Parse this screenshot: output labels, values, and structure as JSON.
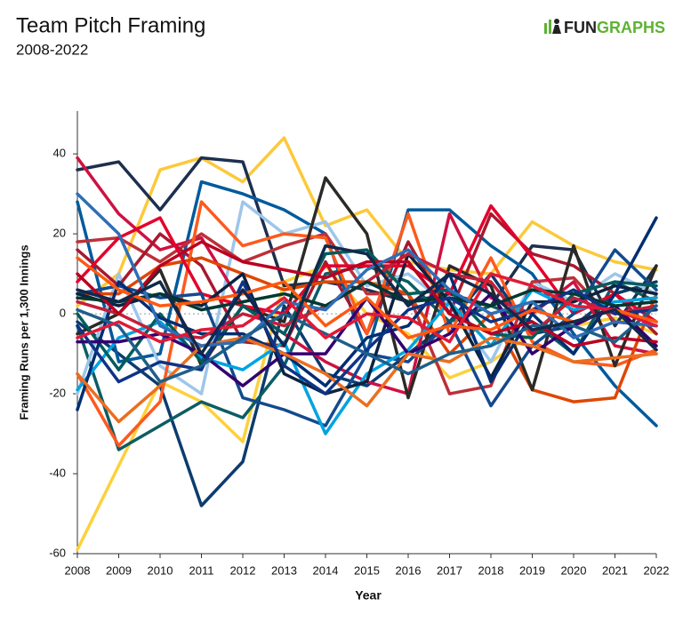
{
  "chart_data": {
    "type": "line",
    "title": "Team Pitch Framing",
    "subtitle": "2008-2022",
    "logo": [
      "FUN",
      "GRAPHS"
    ],
    "xlabel": "Year",
    "ylabel": "Framing Runs per 1,300 Innings",
    "x": [
      2008,
      2009,
      2010,
      2011,
      2012,
      2013,
      2014,
      2015,
      2016,
      2017,
      2018,
      2019,
      2020,
      2021,
      2022
    ],
    "xlim": [
      2008,
      2022
    ],
    "xticks": [
      2008,
      2009,
      2010,
      2011,
      2012,
      2013,
      2014,
      2015,
      2016,
      2017,
      2018,
      2019,
      2020,
      2021,
      2022
    ],
    "ylim": [
      -60,
      50.7
    ],
    "yticks": [
      -60,
      -40,
      -20,
      0,
      20,
      40
    ],
    "reference_line": 0,
    "series": [
      {
        "color": "#fdd13a",
        "values": [
          -59,
          -38,
          -17,
          -22,
          -32,
          8,
          12,
          0,
          -5,
          -16,
          -12,
          -5,
          -3,
          -1,
          -5
        ]
      },
      {
        "color": "#fcc93a",
        "values": [
          2,
          10,
          36,
          39,
          33,
          44,
          22,
          26,
          13,
          11,
          10,
          23,
          17,
          13,
          11
        ]
      },
      {
        "color": "#1d2f4f",
        "values": [
          36,
          38,
          26,
          39,
          38,
          7,
          8,
          6,
          3,
          5,
          2,
          17,
          16,
          -3,
          12
        ]
      },
      {
        "color": "#0c3c6e",
        "values": [
          -2,
          -10,
          -18,
          -48,
          -37,
          2,
          -15,
          -18,
          -10,
          -2,
          10,
          -5,
          -3,
          5,
          8
        ]
      },
      {
        "color": "#0d5c63",
        "values": [
          -3,
          -34,
          -28,
          -22,
          -26,
          -13,
          10,
          12,
          8,
          -2,
          2,
          -2,
          -10,
          8,
          3
        ]
      },
      {
        "color": "#005a9c",
        "values": [
          28,
          -12,
          -10,
          33,
          30,
          26,
          20,
          -10,
          26,
          26,
          17,
          10,
          -5,
          -18,
          -28
        ]
      },
      {
        "color": "#9dc6ea",
        "values": [
          -20,
          10,
          -13,
          -20,
          28,
          20,
          23,
          7,
          10,
          2,
          -12,
          8,
          3,
          10,
          5
        ]
      },
      {
        "color": "#ce1141",
        "values": [
          39,
          25,
          16,
          19,
          2,
          -5,
          -12,
          -17,
          -20,
          25,
          4,
          0,
          8,
          -8,
          -10
        ]
      },
      {
        "color": "#bd3039",
        "values": [
          18,
          19,
          13,
          20,
          13,
          17,
          20,
          5,
          5,
          -20,
          -18,
          8,
          9,
          -2,
          -3
        ]
      },
      {
        "color": "#a71930",
        "values": [
          16,
          7,
          20,
          12,
          -7,
          -8,
          13,
          -5,
          18,
          0,
          25,
          15,
          12,
          5,
          -5
        ]
      },
      {
        "color": "#fd5a1e",
        "values": [
          -15,
          -33,
          -22,
          28,
          17,
          20,
          19,
          -5,
          25,
          -5,
          14,
          -7,
          -12,
          -13,
          -9
        ]
      },
      {
        "color": "#df4601",
        "values": [
          5,
          5,
          12,
          14,
          10,
          6,
          8,
          8,
          5,
          -10,
          0,
          -19,
          -22,
          -21,
          5
        ]
      },
      {
        "color": "#2b2a26",
        "values": [
          -5,
          0,
          11,
          -13,
          2,
          -2,
          34,
          20,
          -21,
          12,
          7,
          -19,
          17,
          -13,
          12
        ]
      },
      {
        "color": "#e4002b",
        "values": [
          8,
          19,
          24,
          5,
          2,
          0,
          12,
          12,
          12,
          5,
          27,
          14,
          0,
          5,
          -2
        ]
      },
      {
        "color": "#134a8e",
        "values": [
          5,
          7,
          4,
          5,
          -21,
          -24,
          -28,
          -10,
          -12,
          -2,
          -23,
          -8,
          0,
          16,
          6
        ]
      },
      {
        "color": "#00a3e0",
        "values": [
          -19,
          -6,
          -2,
          -11,
          -14,
          -7,
          -30,
          -15,
          -9,
          3,
          -8,
          6,
          1,
          3,
          4
        ]
      },
      {
        "color": "#0c2340",
        "values": [
          5,
          2,
          5,
          2,
          10,
          -15,
          -20,
          -17,
          15,
          3,
          -16,
          3,
          3,
          7,
          5
        ]
      },
      {
        "color": "#005c5c",
        "values": [
          0,
          -14,
          0,
          -12,
          2,
          -5,
          15,
          16,
          5,
          6,
          -5,
          -6,
          5,
          8,
          7
        ]
      },
      {
        "color": "#002d72",
        "values": [
          -24,
          8,
          -1,
          -5,
          -5,
          -10,
          -18,
          -6,
          -3,
          10,
          -17,
          0,
          -10,
          5,
          24
        ]
      },
      {
        "color": "#33006f",
        "values": [
          -7,
          -7,
          -5,
          -10,
          -18,
          -10,
          -10,
          4,
          -10,
          -5,
          5,
          -10,
          -3,
          2,
          -8
        ]
      },
      {
        "color": "#c41e3a",
        "values": [
          3,
          0,
          -5,
          -6,
          0,
          -3,
          2,
          8,
          15,
          10,
          8,
          -5,
          4,
          0,
          2
        ]
      },
      {
        "color": "#eb6e1f",
        "values": [
          -15,
          -27,
          -18,
          -8,
          -6,
          -10,
          -15,
          -23,
          -10,
          -12,
          -6,
          -8,
          -12,
          -11,
          -10
        ]
      },
      {
        "color": "#003831",
        "values": [
          4,
          3,
          5,
          1,
          3,
          5,
          2,
          8,
          3,
          4,
          2,
          6,
          5,
          2,
          3
        ]
      },
      {
        "color": "#0e3386",
        "values": [
          -3,
          -17,
          -12,
          -14,
          8,
          -13,
          -20,
          -9,
          1,
          4,
          -2,
          1,
          6,
          0,
          1
        ]
      },
      {
        "color": "#ba0021",
        "values": [
          10,
          0,
          12,
          18,
          13,
          11,
          9,
          13,
          13,
          0,
          -5,
          -2,
          -8,
          -6,
          -7
        ]
      },
      {
        "color": "#2f6eb5",
        "values": [
          30,
          20,
          -3,
          -8,
          -7,
          3,
          1,
          11,
          16,
          6,
          0,
          3,
          -6,
          -2,
          -3
        ]
      },
      {
        "color": "#1e5f8a",
        "values": [
          1,
          -3,
          -17,
          -13,
          -6,
          0,
          -5,
          -10,
          -15,
          -10,
          -8,
          -3,
          -3,
          -7,
          2
        ]
      },
      {
        "color": "#e31937",
        "values": [
          -6,
          -2,
          -7,
          -4,
          -3,
          4,
          -6,
          0,
          -1,
          -7,
          10,
          7,
          2,
          1,
          -3
        ]
      },
      {
        "color": "#ff5910",
        "values": [
          14,
          6,
          2,
          3,
          5,
          8,
          -3,
          4,
          -6,
          -3,
          -4,
          1,
          -2,
          1,
          -2
        ]
      },
      {
        "color": "#12284b",
        "values": [
          6,
          3,
          8,
          -10,
          6,
          -8,
          17,
          15,
          2,
          10,
          5,
          -4,
          -2,
          1,
          -9
        ]
      }
    ]
  }
}
